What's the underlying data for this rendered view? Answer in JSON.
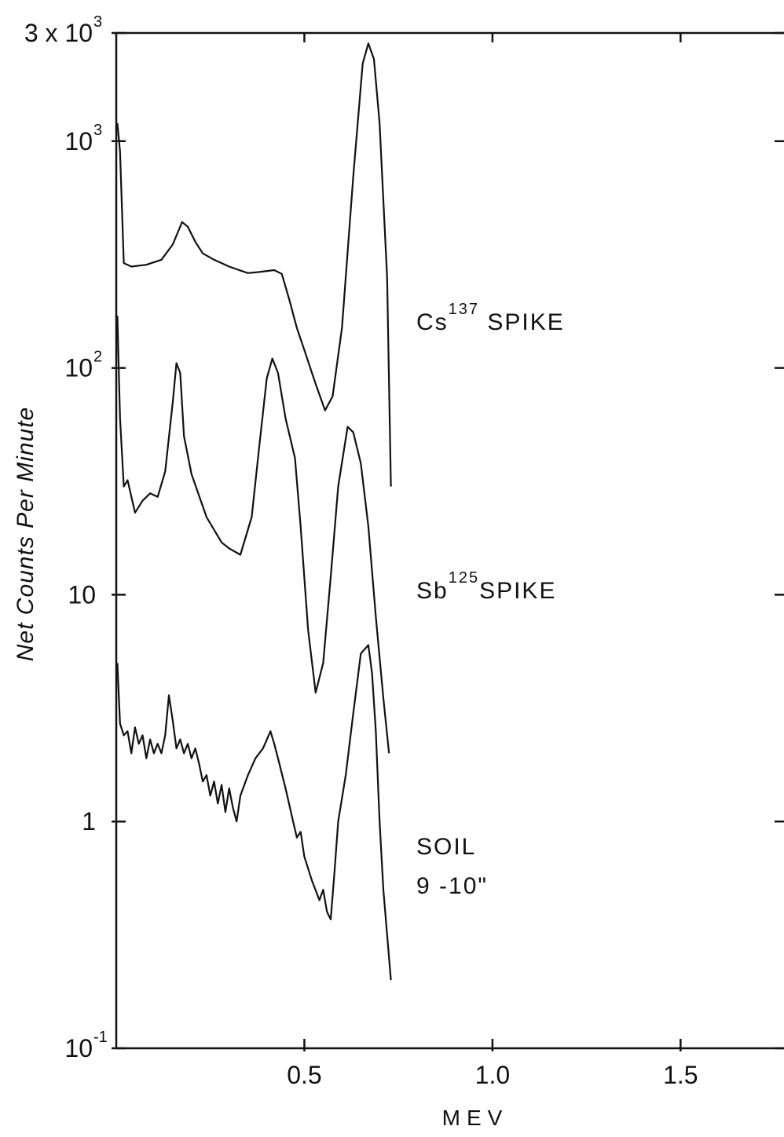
{
  "chart_data": {
    "type": "line",
    "xlabel": "MEV",
    "ylabel": "Net Counts Per Minute",
    "xlim": [
      0,
      1.8
    ],
    "ylim": [
      0.1,
      3000
    ],
    "yscale": "log",
    "grid": false,
    "x_ticks": [
      {
        "value": 0.5,
        "label": "0.5"
      },
      {
        "value": 1.0,
        "label": "1.0"
      },
      {
        "value": 1.5,
        "label": "1.5"
      }
    ],
    "y_ticks": [
      {
        "value": 3000,
        "label": "3 x 10",
        "sup": "3"
      },
      {
        "value": 1000,
        "label": "10",
        "sup": "3"
      },
      {
        "value": 100,
        "label": "10",
        "sup": "2"
      },
      {
        "value": 10,
        "label": "10",
        "sup": ""
      },
      {
        "value": 1,
        "label": "1",
        "sup": ""
      },
      {
        "value": 0.1,
        "label": "10",
        "sup": "-1"
      }
    ],
    "series": [
      {
        "name": "Cs137 SPIKE",
        "label_main": "Cs",
        "label_sup": "137",
        "label_tail": " SPIKE",
        "x": [
          0.003,
          0.01,
          0.02,
          0.04,
          0.08,
          0.12,
          0.15,
          0.175,
          0.19,
          0.21,
          0.23,
          0.26,
          0.3,
          0.35,
          0.38,
          0.42,
          0.44,
          0.46,
          0.48,
          0.5,
          0.53,
          0.555,
          0.575,
          0.6,
          0.63,
          0.655,
          0.67,
          0.685,
          0.7,
          0.72,
          0.73
        ],
        "y": [
          1200,
          900,
          290,
          280,
          285,
          300,
          350,
          440,
          420,
          360,
          320,
          300,
          280,
          262,
          265,
          270,
          260,
          200,
          150,
          120,
          85,
          65,
          75,
          150,
          700,
          2200,
          2700,
          2300,
          1200,
          250,
          30
        ]
      },
      {
        "name": "Sb125 SPIKE",
        "label_main": "Sb",
        "label_sup": "125",
        "label_tail": "SPIKE",
        "x": [
          0.003,
          0.01,
          0.02,
          0.03,
          0.05,
          0.07,
          0.09,
          0.11,
          0.13,
          0.15,
          0.16,
          0.17,
          0.18,
          0.2,
          0.24,
          0.28,
          0.3,
          0.33,
          0.36,
          0.38,
          0.4,
          0.415,
          0.43,
          0.45,
          0.475,
          0.49,
          0.51,
          0.53,
          0.55,
          0.57,
          0.59,
          0.615,
          0.63,
          0.65,
          0.67,
          0.69,
          0.71,
          0.725
        ],
        "y": [
          170,
          60,
          30,
          32,
          23,
          26,
          28,
          27,
          35,
          70,
          105,
          95,
          50,
          34,
          22,
          17,
          16,
          15,
          22,
          45,
          90,
          110,
          95,
          60,
          40,
          20,
          7,
          3.7,
          5,
          12,
          30,
          55,
          52,
          38,
          20,
          8,
          3.5,
          2
        ]
      },
      {
        "name": "SOIL 9 -10\"",
        "label_main": "SOIL",
        "label_sup": "",
        "label_tail": "",
        "label_line2": "9 -10\"",
        "x": [
          0.003,
          0.01,
          0.02,
          0.03,
          0.04,
          0.05,
          0.06,
          0.07,
          0.08,
          0.09,
          0.1,
          0.11,
          0.12,
          0.13,
          0.14,
          0.15,
          0.16,
          0.17,
          0.18,
          0.19,
          0.2,
          0.21,
          0.22,
          0.23,
          0.24,
          0.25,
          0.26,
          0.27,
          0.28,
          0.29,
          0.3,
          0.31,
          0.32,
          0.33,
          0.35,
          0.37,
          0.39,
          0.41,
          0.42,
          0.43,
          0.45,
          0.47,
          0.48,
          0.49,
          0.5,
          0.52,
          0.54,
          0.55,
          0.56,
          0.57,
          0.58,
          0.59,
          0.61,
          0.63,
          0.65,
          0.67,
          0.68,
          0.69,
          0.7,
          0.71,
          0.73
        ],
        "y": [
          5,
          2.7,
          2.4,
          2.5,
          2.0,
          2.6,
          2.2,
          2.4,
          1.9,
          2.3,
          2.0,
          2.2,
          2.0,
          2.4,
          3.6,
          2.8,
          2.1,
          2.3,
          2.0,
          2.2,
          1.9,
          2.1,
          1.8,
          1.5,
          1.6,
          1.3,
          1.5,
          1.2,
          1.45,
          1.1,
          1.4,
          1.15,
          1.0,
          1.3,
          1.6,
          1.9,
          2.1,
          2.5,
          2.2,
          1.9,
          1.4,
          1.0,
          0.85,
          0.9,
          0.7,
          0.55,
          0.45,
          0.5,
          0.4,
          0.37,
          0.6,
          1.0,
          1.6,
          3.0,
          5.5,
          6.0,
          4.5,
          2.5,
          1.0,
          0.5,
          0.2
        ]
      }
    ]
  }
}
